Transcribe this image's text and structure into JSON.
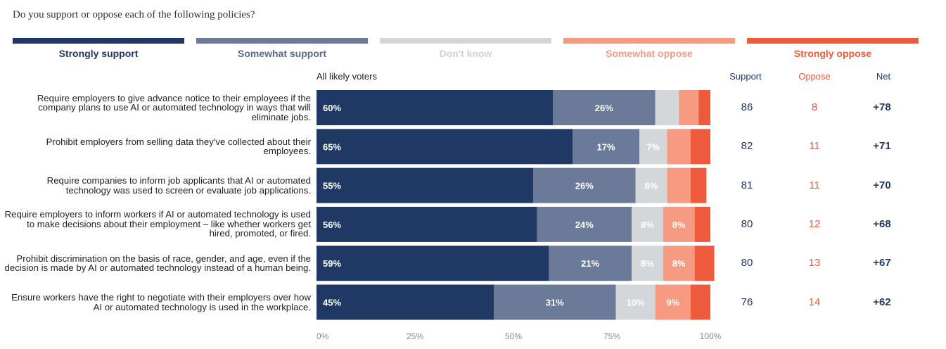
{
  "question": "Do you support or oppose each of the following policies?",
  "legend": [
    {
      "label": "Strongly support",
      "color": "#1f3864"
    },
    {
      "label": "Somewhat support",
      "color": "#6b7a99"
    },
    {
      "label": "Don't know",
      "color": "#d4d7d9"
    },
    {
      "label": "Somewhat oppose",
      "color": "#f79a82"
    },
    {
      "label": "Strongly oppose",
      "color": "#ee5a3c"
    }
  ],
  "bar_header": "All likely voters",
  "summary_headers": {
    "support": "Support",
    "oppose": "Oppose",
    "net": "Net"
  },
  "chart_data": {
    "type": "bar",
    "orientation": "horizontal",
    "stacked": true,
    "xlim": [
      0,
      100
    ],
    "xticks": [
      "0%",
      "25%",
      "50%",
      "75%",
      "100%"
    ],
    "categories": [
      "Require employers to give advance notice to their employees if the company plans to use AI or automated technology in ways that will eliminate jobs.",
      "Prohibit employers from selling data they've collected about their employees.",
      "Require companies to inform job applicants that AI or automated technology was used to screen or evaluate job applications.",
      "Require employers to inform workers if AI or automated technology is used to make decisions about their employment – like whether workers get hired, promoted, or fired.",
      "Prohibit discrimination on the basis of race, gender, and age, even if the decision is made by AI or automated technology instead of a human being.",
      "Ensure workers have the right to negotiate with their employers over how AI or automated technology is used in the workplace."
    ],
    "series": [
      {
        "name": "Strongly support",
        "values": [
          60,
          65,
          55,
          56,
          59,
          45
        ],
        "labels": [
          "60%",
          "65%",
          "55%",
          "56%",
          "59%",
          "45%"
        ]
      },
      {
        "name": "Somewhat support",
        "values": [
          26,
          17,
          26,
          24,
          21,
          31
        ],
        "labels": [
          "26%",
          "17%",
          "26%",
          "24%",
          "21%",
          "31%"
        ]
      },
      {
        "name": "Don't know",
        "values": [
          6,
          7,
          8,
          8,
          8,
          10
        ],
        "labels": [
          "",
          "7%",
          "8%",
          "8%",
          "8%",
          "10%"
        ]
      },
      {
        "name": "Somewhat oppose",
        "values": [
          5,
          6,
          6,
          8,
          8,
          9
        ],
        "labels": [
          "",
          "",
          "",
          "8%",
          "8%",
          "9%"
        ]
      },
      {
        "name": "Strongly oppose",
        "values": [
          3,
          5,
          4,
          4,
          5,
          5
        ],
        "labels": [
          "",
          "",
          "",
          "",
          "",
          ""
        ]
      }
    ],
    "support": [
      "86",
      "82",
      "81",
      "80",
      "80",
      "76"
    ],
    "oppose": [
      "8",
      "11",
      "11",
      "12",
      "13",
      "14"
    ],
    "net": [
      "+78",
      "+71",
      "+70",
      "+68",
      "+67",
      "+62"
    ]
  }
}
